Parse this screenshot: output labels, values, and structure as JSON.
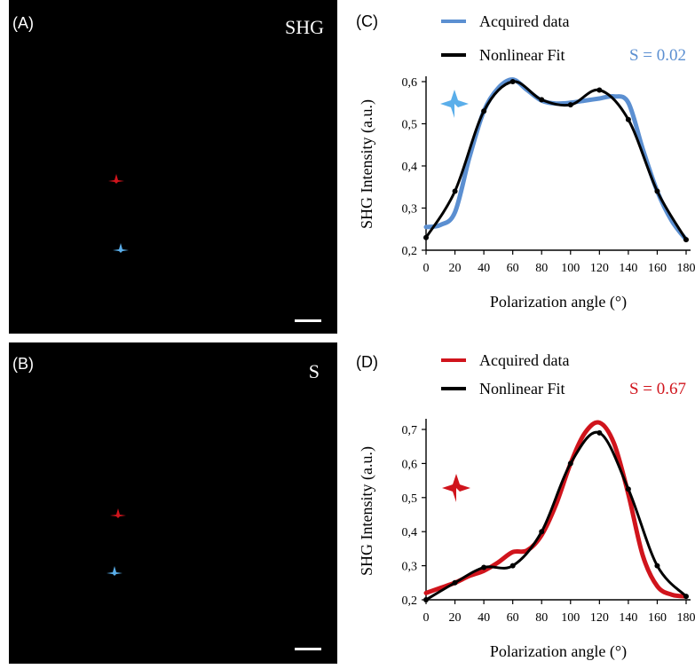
{
  "panels": {
    "A": {
      "letter": "(A)",
      "label": "SHG"
    },
    "B": {
      "letter": "(B)",
      "label": "S"
    }
  },
  "colors": {
    "blue": "#5b8fd1",
    "red": "#d0141c",
    "black": "#000000",
    "blue_star": "#5aaeea",
    "red_star": "#d0141c"
  },
  "chart_data": [
    {
      "type": "line",
      "panel": "(C)",
      "xlabel": "Polarization angle (°)",
      "ylabel": "SHG Intensity (a.u.)",
      "xlim": [
        0,
        180
      ],
      "ylim": [
        0.2,
        0.6
      ],
      "xticks": [
        "0",
        "20",
        "40",
        "60",
        "80",
        "100",
        "120",
        "140",
        "160",
        "180"
      ],
      "yticks": [
        "0,2",
        "0,3",
        "0,4",
        "0,5",
        "0,6"
      ],
      "annotation": "S = 0.02",
      "series": [
        {
          "name": "Acquired data",
          "color": "#5b8fd1",
          "x": [
            0,
            10,
            20,
            30,
            40,
            50,
            60,
            70,
            80,
            90,
            100,
            110,
            120,
            130,
            140,
            150,
            160,
            170,
            180
          ],
          "y": [
            0.255,
            0.26,
            0.29,
            0.42,
            0.53,
            0.585,
            0.605,
            0.58,
            0.555,
            0.548,
            0.55,
            0.555,
            0.56,
            0.565,
            0.55,
            0.44,
            0.34,
            0.27,
            0.225
          ]
        },
        {
          "name": "Nonlinear Fit",
          "color": "#000000",
          "x": [
            0,
            20,
            40,
            60,
            80,
            100,
            120,
            140,
            160,
            180
          ],
          "y": [
            0.23,
            0.34,
            0.53,
            0.6,
            0.557,
            0.545,
            0.58,
            0.51,
            0.34,
            0.225
          ]
        }
      ]
    },
    {
      "type": "line",
      "panel": "(D)",
      "xlabel": "Polarization angle (°)",
      "ylabel": "SHG Intensity (a.u.)",
      "xlim": [
        0,
        180
      ],
      "ylim": [
        0.2,
        0.7
      ],
      "xticks": [
        "0",
        "20",
        "40",
        "60",
        "80",
        "100",
        "120",
        "140",
        "160",
        "180"
      ],
      "yticks": [
        "0,2",
        "0,3",
        "0,4",
        "0,5",
        "0,6",
        "0,7"
      ],
      "annotation": "S = 0.67",
      "series": [
        {
          "name": "Acquired data",
          "color": "#d0141c",
          "x": [
            0,
            10,
            20,
            30,
            40,
            50,
            60,
            70,
            80,
            90,
            100,
            110,
            120,
            130,
            140,
            150,
            160,
            170,
            180
          ],
          "y": [
            0.22,
            0.235,
            0.25,
            0.27,
            0.285,
            0.31,
            0.34,
            0.345,
            0.39,
            0.48,
            0.6,
            0.69,
            0.72,
            0.66,
            0.51,
            0.33,
            0.24,
            0.215,
            0.21
          ]
        },
        {
          "name": "Nonlinear Fit",
          "color": "#000000",
          "x": [
            0,
            20,
            40,
            60,
            80,
            100,
            120,
            140,
            160,
            180
          ],
          "y": [
            0.2,
            0.25,
            0.295,
            0.3,
            0.4,
            0.6,
            0.69,
            0.525,
            0.3,
            0.21
          ]
        }
      ]
    }
  ]
}
